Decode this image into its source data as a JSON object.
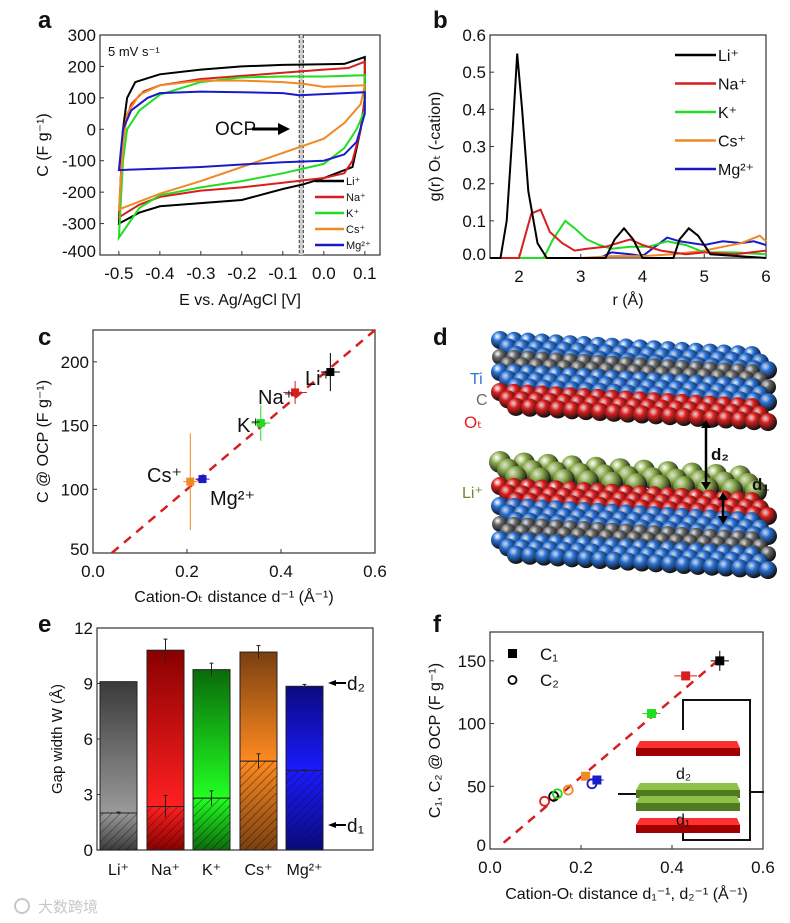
{
  "figure": {
    "panel_labels": [
      "a",
      "b",
      "c",
      "d",
      "e",
      "f"
    ],
    "watermark": "大数跨境"
  },
  "colors": {
    "Li": "#000000",
    "Na": "#d81e1e",
    "K": "#22dd22",
    "Cs": "#f08a24",
    "Mg": "#1a1ac8"
  },
  "chart_data": [
    {
      "panel": "a",
      "type": "line",
      "xlabel": "E vs. Ag/AgCl [V]",
      "ylabel": "C (F g⁻¹)",
      "xlim": [
        -0.55,
        0.14
      ],
      "ylim": [
        -400,
        300
      ],
      "xticks": [
        -0.5,
        -0.4,
        -0.3,
        -0.2,
        -0.1,
        0.0,
        0.1
      ],
      "xticklabels": [
        "-0.5",
        "-0.4",
        "-0.3",
        "-0.2",
        "-0.1",
        "0.0",
        "0.1"
      ],
      "yticks": [
        -400,
        -300,
        -200,
        -100,
        0,
        100,
        200,
        300
      ],
      "yticklabels": [
        "-400",
        "-300",
        "-200",
        "-100",
        "0",
        "100",
        "200",
        "300"
      ],
      "annotation": "5 mV s⁻¹",
      "ocp_label": "OCP",
      "ocp_range": [
        -0.06,
        -0.05
      ],
      "legend": "bottom-right",
      "series": [
        {
          "name": "Li⁺",
          "key": "Li",
          "points": [
            [
              -0.5,
              -300
            ],
            [
              -0.49,
              0
            ],
            [
              -0.48,
              100
            ],
            [
              -0.46,
              150
            ],
            [
              -0.4,
              175
            ],
            [
              -0.3,
              190
            ],
            [
              -0.2,
              200
            ],
            [
              -0.1,
              205
            ],
            [
              0,
              207
            ],
            [
              0.05,
              208
            ],
            [
              0.1,
              230
            ],
            [
              0.1,
              100
            ],
            [
              0.09,
              0
            ],
            [
              0.07,
              -120
            ],
            [
              0,
              -155
            ],
            [
              -0.05,
              -175
            ],
            [
              -0.1,
              -190
            ],
            [
              -0.2,
              -225
            ],
            [
              -0.3,
              -235
            ],
            [
              -0.4,
              -245
            ],
            [
              -0.45,
              -265
            ],
            [
              -0.5,
              -300
            ]
          ]
        },
        {
          "name": "Na⁺",
          "key": "Na",
          "points": [
            [
              -0.5,
              -280
            ],
            [
              -0.49,
              0
            ],
            [
              -0.47,
              80
            ],
            [
              -0.44,
              120
            ],
            [
              -0.4,
              140
            ],
            [
              -0.3,
              160
            ],
            [
              -0.2,
              170
            ],
            [
              -0.1,
              180
            ],
            [
              0,
              190
            ],
            [
              0.06,
              195
            ],
            [
              0.1,
              215
            ],
            [
              0.1,
              100
            ],
            [
              0.09,
              0
            ],
            [
              0.07,
              -100
            ],
            [
              0.05,
              -140
            ],
            [
              0,
              -155
            ],
            [
              -0.1,
              -170
            ],
            [
              -0.2,
              -185
            ],
            [
              -0.3,
              -195
            ],
            [
              -0.4,
              -215
            ],
            [
              -0.45,
              -240
            ],
            [
              -0.5,
              -280
            ]
          ]
        },
        {
          "name": "K⁺",
          "key": "K",
          "points": [
            [
              -0.5,
              -345
            ],
            [
              -0.49,
              -100
            ],
            [
              -0.48,
              0
            ],
            [
              -0.45,
              60
            ],
            [
              -0.4,
              110
            ],
            [
              -0.3,
              150
            ],
            [
              -0.2,
              165
            ],
            [
              -0.1,
              168
            ],
            [
              0,
              168
            ],
            [
              0.1,
              172
            ],
            [
              0.1,
              60
            ],
            [
              0.08,
              0
            ],
            [
              0.05,
              -60
            ],
            [
              0,
              -110
            ],
            [
              -0.1,
              -140
            ],
            [
              -0.2,
              -165
            ],
            [
              -0.3,
              -185
            ],
            [
              -0.4,
              -210
            ],
            [
              -0.45,
              -250
            ],
            [
              -0.5,
              -345
            ]
          ]
        },
        {
          "name": "Cs⁺",
          "key": "Cs",
          "points": [
            [
              -0.5,
              -260
            ],
            [
              -0.49,
              -50
            ],
            [
              -0.48,
              50
            ],
            [
              -0.45,
              110
            ],
            [
              -0.4,
              140
            ],
            [
              -0.3,
              155
            ],
            [
              -0.2,
              155
            ],
            [
              -0.1,
              150
            ],
            [
              -0.05,
              145
            ],
            [
              0,
              135
            ],
            [
              0.1,
              140
            ],
            [
              0.09,
              80
            ],
            [
              0.05,
              20
            ],
            [
              0,
              -30
            ],
            [
              -0.1,
              -75
            ],
            [
              -0.2,
              -120
            ],
            [
              -0.3,
              -165
            ],
            [
              -0.4,
              -205
            ],
            [
              -0.45,
              -230
            ],
            [
              -0.5,
              -255
            ]
          ]
        },
        {
          "name": "Mg²⁺",
          "key": "Mg",
          "points": [
            [
              -0.5,
              -130
            ],
            [
              -0.49,
              0
            ],
            [
              -0.47,
              60
            ],
            [
              -0.43,
              100
            ],
            [
              -0.4,
              115
            ],
            [
              -0.3,
              120
            ],
            [
              -0.2,
              118
            ],
            [
              -0.1,
              115
            ],
            [
              -0.06,
              108
            ],
            [
              0,
              112
            ],
            [
              0.1,
              118
            ],
            [
              0.1,
              50
            ],
            [
              0.08,
              -40
            ],
            [
              0.05,
              -80
            ],
            [
              0,
              -100
            ],
            [
              -0.1,
              -105
            ],
            [
              -0.2,
              -112
            ],
            [
              -0.3,
              -120
            ],
            [
              -0.4,
              -125
            ],
            [
              -0.5,
              -130
            ]
          ]
        }
      ]
    },
    {
      "panel": "b",
      "type": "line",
      "xlabel": "r (Å)",
      "ylabel": "g(r) Oₜ (-cation)",
      "xlim": [
        1.53,
        6
      ],
      "ylim": [
        0,
        0.6
      ],
      "xticks": [
        2,
        3,
        4,
        5,
        6
      ],
      "xticklabels": [
        "2",
        "3",
        "4",
        "5",
        "6"
      ],
      "yticks": [
        0,
        0.1,
        0.2,
        0.3,
        0.4,
        0.5,
        0.6
      ],
      "yticklabels": [
        "0.0",
        "0.1",
        "0.2",
        "0.3",
        "0.4",
        "0.5",
        "0.6"
      ],
      "legend": "top-right",
      "series": [
        {
          "name": "Li⁺",
          "key": "Li",
          "points": [
            [
              1.53,
              0
            ],
            [
              1.7,
              0
            ],
            [
              1.8,
              0.1
            ],
            [
              1.9,
              0.35
            ],
            [
              1.97,
              0.55
            ],
            [
              2.05,
              0.4
            ],
            [
              2.15,
              0.18
            ],
            [
              2.3,
              0.04
            ],
            [
              2.45,
              0
            ],
            [
              3.4,
              0
            ],
            [
              3.55,
              0.05
            ],
            [
              3.7,
              0.08
            ],
            [
              3.85,
              0.05
            ],
            [
              4,
              0
            ],
            [
              4.5,
              0
            ],
            [
              4.6,
              0.05
            ],
            [
              4.75,
              0.08
            ],
            [
              4.9,
              0.06
            ],
            [
              5.1,
              0.01
            ],
            [
              6,
              0
            ]
          ]
        },
        {
          "name": "Na⁺",
          "key": "Na",
          "points": [
            [
              1.53,
              0
            ],
            [
              2,
              0
            ],
            [
              2.1,
              0.06
            ],
            [
              2.2,
              0.12
            ],
            [
              2.35,
              0.13
            ],
            [
              2.5,
              0.07
            ],
            [
              2.7,
              0.04
            ],
            [
              2.9,
              0.02
            ],
            [
              3.1,
              0.025
            ],
            [
              3.4,
              0.03
            ],
            [
              3.6,
              0.04
            ],
            [
              3.8,
              0.05
            ],
            [
              4,
              0.035
            ],
            [
              4.3,
              0.02
            ],
            [
              4.7,
              0.01
            ],
            [
              5,
              0.015
            ],
            [
              5.5,
              0.01
            ],
            [
              6,
              0.02
            ]
          ]
        },
        {
          "name": "K⁺",
          "key": "K",
          "points": [
            [
              1.53,
              0
            ],
            [
              2.4,
              0
            ],
            [
              2.55,
              0.05
            ],
            [
              2.75,
              0.1
            ],
            [
              2.9,
              0.08
            ],
            [
              3.1,
              0.05
            ],
            [
              3.3,
              0.035
            ],
            [
              3.5,
              0.025
            ],
            [
              3.8,
              0.03
            ],
            [
              4.1,
              0.03
            ],
            [
              4.4,
              0.045
            ],
            [
              4.7,
              0.035
            ],
            [
              5,
              0.015
            ],
            [
              5.5,
              0.015
            ],
            [
              6,
              0.01
            ]
          ]
        },
        {
          "name": "Cs⁺",
          "key": "Cs",
          "points": [
            [
              1.53,
              0
            ],
            [
              3,
              0
            ],
            [
              3.5,
              0.005
            ],
            [
              4,
              0.005
            ],
            [
              4.5,
              0.01
            ],
            [
              5,
              0.02
            ],
            [
              5.3,
              0.03
            ],
            [
              5.6,
              0.04
            ],
            [
              5.9,
              0.06
            ],
            [
              6,
              0.045
            ]
          ]
        },
        {
          "name": "Mg²⁺",
          "key": "Mg",
          "points": [
            [
              1.53,
              0
            ],
            [
              3.3,
              0
            ],
            [
              3.5,
              0.015
            ],
            [
              3.8,
              0.01
            ],
            [
              4,
              0.005
            ],
            [
              4.2,
              0.03
            ],
            [
              4.4,
              0.055
            ],
            [
              4.6,
              0.045
            ],
            [
              5,
              0.035
            ],
            [
              5.3,
              0.045
            ],
            [
              5.6,
              0.04
            ],
            [
              5.8,
              0.045
            ],
            [
              6,
              0.035
            ]
          ]
        }
      ]
    },
    {
      "panel": "c",
      "type": "scatter",
      "xlabel": "Cation-Oₜ distance d⁻¹ (Å⁻¹)",
      "ylabel": "C @ OCP (F g⁻¹)",
      "xlim": [
        0,
        0.6
      ],
      "ylim": [
        50,
        225
      ],
      "xticks": [
        0,
        0.2,
        0.4,
        0.6
      ],
      "xticklabels": [
        "0.0",
        "0.2",
        "0.4",
        "0.6"
      ],
      "yticks": [
        50,
        100,
        150,
        200
      ],
      "yticklabels": [
        "50",
        "100",
        "150",
        "200"
      ],
      "fit_line": [
        [
          0.04,
          50
        ],
        [
          0.6,
          225
        ]
      ],
      "points": [
        {
          "name": "Li⁺",
          "key": "Li",
          "x": 0.505,
          "y": 192,
          "xerr": 0.02,
          "yerr": 15
        },
        {
          "name": "Na⁺",
          "key": "Na",
          "x": 0.43,
          "y": 176,
          "xerr": 0.025,
          "yerr": 9
        },
        {
          "name": "K⁺",
          "key": "K",
          "x": 0.357,
          "y": 152,
          "xerr": 0.02,
          "yerr": 14
        },
        {
          "name": "Cs⁺",
          "key": "Cs",
          "x": 0.207,
          "y": 106,
          "xerr": 0.015,
          "yerr": 38
        },
        {
          "name": "Mg²⁺",
          "key": "Mg",
          "x": 0.233,
          "y": 108,
          "xerr": 0.015,
          "yerr": 3
        }
      ]
    },
    {
      "panel": "e",
      "type": "bar",
      "ylabel": "Gap width W (Å)",
      "ylim": [
        0,
        12
      ],
      "yticks": [
        0,
        3,
        6,
        9,
        12
      ],
      "yticklabels": [
        "0",
        "3",
        "6",
        "9",
        "12"
      ],
      "categories": [
        "Li⁺",
        "Na⁺",
        "K⁺",
        "Cs⁺",
        "Mg²⁺"
      ],
      "keys": [
        "Li",
        "Na",
        "K",
        "Cs",
        "Mg"
      ],
      "series": [
        {
          "name": "W",
          "values": [
            9.1,
            10.8,
            9.75,
            10.7,
            8.85
          ],
          "errors": [
            0,
            0.6,
            0.35,
            0.35,
            0.1
          ]
        },
        {
          "name": "d₁",
          "values": [
            2.0,
            2.35,
            2.8,
            4.8,
            4.3
          ],
          "errors": [
            0.05,
            0.6,
            0.4,
            0.4,
            0.05
          ]
        }
      ],
      "marker_labels": [
        "d₂",
        "d₁"
      ]
    },
    {
      "panel": "f",
      "type": "scatter",
      "xlabel": "Cation-Oₜ distance d₁⁻¹, d₂⁻¹ (Å⁻¹)",
      "ylabel": "C₁, C₂ @ OCP (F g⁻¹)",
      "xlim": [
        0,
        0.6
      ],
      "ylim": [
        0,
        173
      ],
      "xticks": [
        0,
        0.2,
        0.4,
        0.6
      ],
      "xticklabels": [
        "0.0",
        "0.2",
        "0.4",
        "0.6"
      ],
      "yticks": [
        0,
        50,
        100,
        150
      ],
      "yticklabels": [
        "0",
        "50",
        "100",
        "150"
      ],
      "legend": [
        "C₁",
        "C₂"
      ],
      "fit_line": [
        [
          0.03,
          5
        ],
        [
          0.5,
          150
        ]
      ],
      "C1": [
        {
          "key": "Li",
          "x": 0.505,
          "y": 150,
          "xerr": 0.02,
          "yerr": 8
        },
        {
          "key": "Na",
          "x": 0.43,
          "y": 138,
          "xerr": 0.025,
          "yerr": 3
        },
        {
          "key": "K",
          "x": 0.355,
          "y": 108,
          "xerr": 0.02,
          "yerr": 3
        },
        {
          "key": "Cs",
          "x": 0.21,
          "y": 58,
          "xerr": 0.01,
          "yerr": 3
        },
        {
          "key": "Mg",
          "x": 0.235,
          "y": 55,
          "xerr": 0.015,
          "yerr": 3
        }
      ],
      "C2": [
        {
          "key": "Li",
          "x": 0.14,
          "y": 42
        },
        {
          "key": "Na",
          "x": 0.12,
          "y": 38
        },
        {
          "key": "K",
          "x": 0.148,
          "y": 44
        },
        {
          "key": "Cs",
          "x": 0.172,
          "y": 47
        },
        {
          "key": "Mg",
          "x": 0.224,
          "y": 52
        }
      ],
      "inset_labels": [
        "d₂",
        "d₁"
      ]
    }
  ],
  "diagram_d": {
    "labels": {
      "ti": "Ti",
      "c": "C",
      "ot": "Oₜ",
      "li": "Li⁺",
      "d2": "d₂",
      "d1": "d₁"
    },
    "colors": {
      "ti": "#2a73d8",
      "c": "#6a6a6a",
      "o": "#e02020",
      "li": "#8fb050"
    }
  }
}
